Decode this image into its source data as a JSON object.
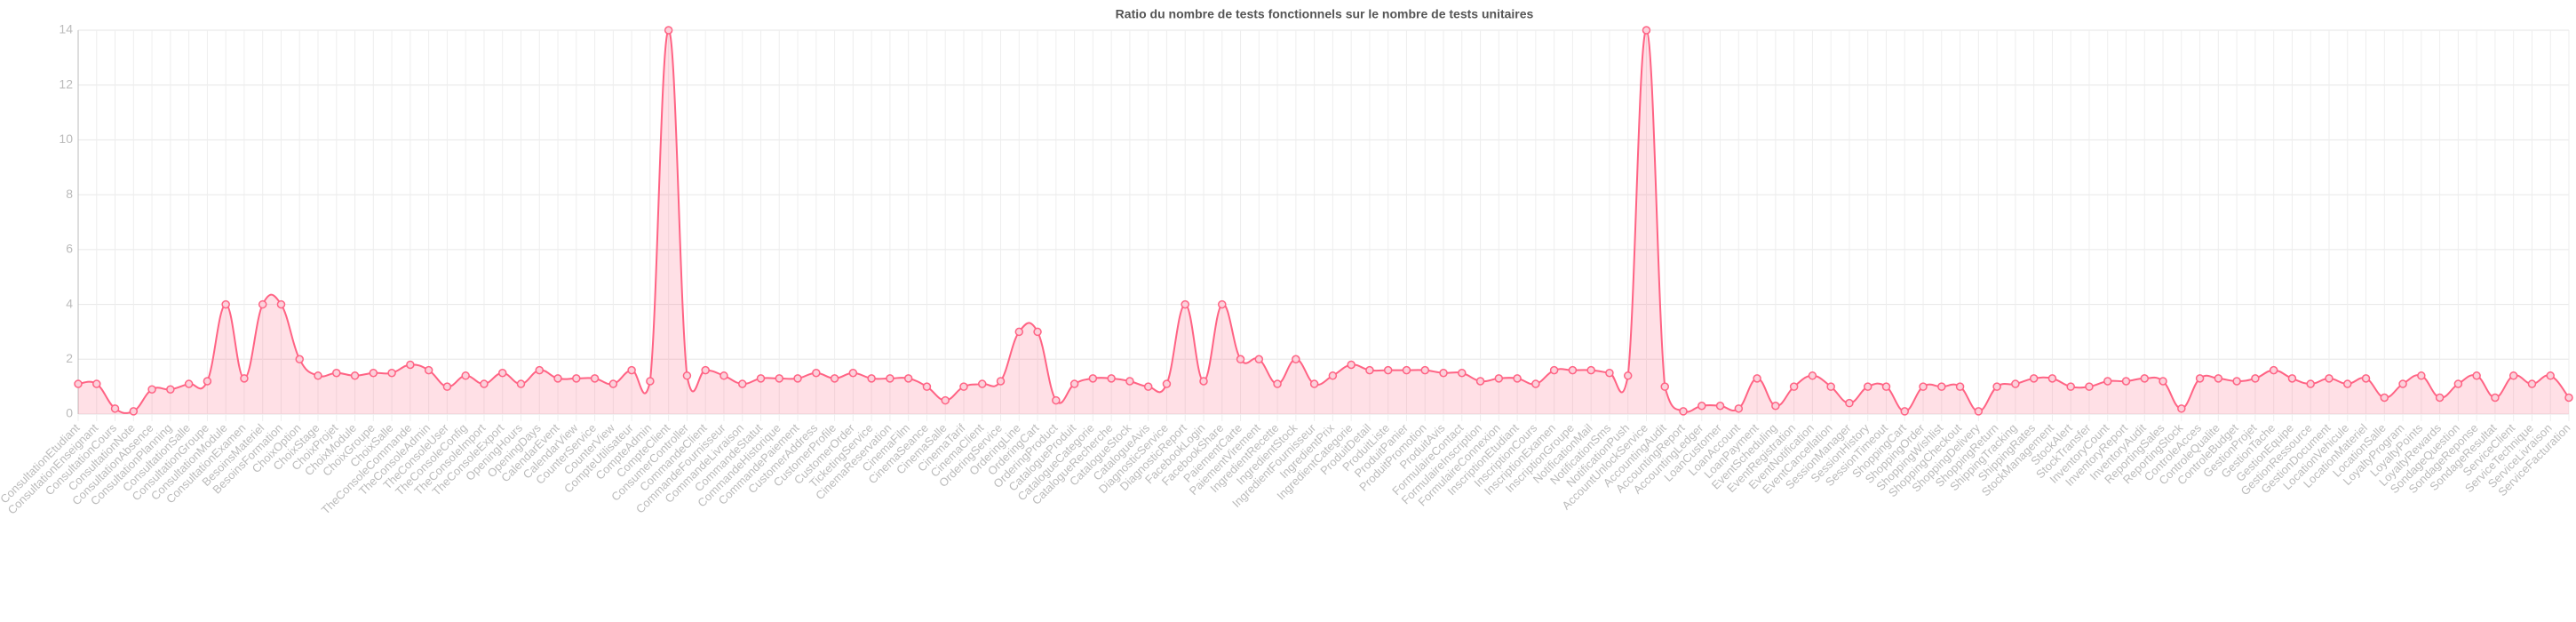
{
  "chart_data": {
    "type": "line",
    "title": "Ratio du nombre de tests fonctionnels sur le nombre de tests unitaires",
    "categories": [
      "ConsultationEtudiant",
      "ConsultationEnseignant",
      "ConsultationCours",
      "ConsultationNote",
      "ConsultationAbsence",
      "ConsultationPlanning",
      "ConsultationSalle",
      "ConsultationGroupe",
      "ConsultationModule",
      "ConsultationExamen",
      "BesoinsMateriel",
      "BesoinsFormation",
      "ChoixOption",
      "ChoixStage",
      "ChoixProjet",
      "ChoixModule",
      "ChoixGroupe",
      "ChoixSalle",
      "TheConsoleCommande",
      "TheConsoleAdmin",
      "TheConsoleUser",
      "TheConsoleConfig",
      "TheConsoleImport",
      "TheConsoleExport",
      "OpeningHours",
      "OpeningDays",
      "CalendarEvent",
      "CalendarView",
      "CounterService",
      "CounterView",
      "CompteUtilisateur",
      "CompteAdmin",
      "CompteClient",
      "ConsumerController",
      "CommandeClient",
      "CommandeFournisseur",
      "CommandeLivraison",
      "CommandeStatut",
      "CommandeHistorique",
      "CommandePaiement",
      "CustomerAddress",
      "CustomerProfile",
      "CustomerOrder",
      "TicketingService",
      "CinemaReservation",
      "CinemaFilm",
      "CinemaSeance",
      "CinemaSalle",
      "CinemaTarif",
      "CinemaClient",
      "OrderingService",
      "OrderingLine",
      "OrderingCart",
      "OrderingProduct",
      "CatalogueProduit",
      "CatalogueCategorie",
      "CatalogueRecherche",
      "CatalogueStock",
      "CatalogueAvis",
      "DiagnosticService",
      "DiagnosticReport",
      "FacebookLogin",
      "FacebookShare",
      "PaiementCarte",
      "PaiementVirement",
      "IngredientRecette",
      "IngredientStock",
      "IngredientFournisseur",
      "IngredientPrix",
      "IngredientCategorie",
      "ProduitDetail",
      "ProduitListe",
      "ProduitPanier",
      "ProduitPromotion",
      "ProduitAvis",
      "FormulaireContact",
      "FormulaireInscription",
      "FormulaireConnexion",
      "InscriptionEtudiant",
      "InscriptionCours",
      "InscriptionExamen",
      "InscriptionGroupe",
      "NotificationMail",
      "NotificationSms",
      "NotificationPush",
      "AccountUnlockService",
      "AccountingAudit",
      "AccountingReport",
      "AccountingLedger",
      "LoanCustomer",
      "LoanAccount",
      "LoanPayment",
      "EventScheduling",
      "EventRegistration",
      "EventNotification",
      "EventCancellation",
      "SessionManager",
      "SessionHistory",
      "SessionTimeout",
      "ShoppingCart",
      "ShoppingOrder",
      "ShoppingWishlist",
      "ShoppingCheckout",
      "ShoppingDelivery",
      "ShoppingReturn",
      "ShippingTracking",
      "ShippingRates",
      "StockManagement",
      "StockAlert",
      "StockTransfer",
      "InventoryCount",
      "InventoryReport",
      "InventoryAudit",
      "ReportingSales",
      "ReportingStock",
      "ControleAcces",
      "ControleQualite",
      "ControleBudget",
      "GestionProjet",
      "GestionTache",
      "GestionEquipe",
      "GestionRessource",
      "GestionDocument",
      "LocationVehicule",
      "LocationMateriel",
      "LocationSalle",
      "LoyaltyProgram",
      "LoyaltyPoints",
      "LoyaltyRewards",
      "SondageQuestion",
      "SondageReponse",
      "SondageResultat",
      "ServiceClient",
      "ServiceTechnique",
      "ServiceLivraison",
      "ServiceFacturation"
    ],
    "values": [
      1.1,
      1.1,
      0.2,
      0.1,
      0.9,
      0.9,
      1.1,
      1.2,
      4,
      1.3,
      4,
      4,
      2,
      1.4,
      1.5,
      1.4,
      1.5,
      1.5,
      1.8,
      1.6,
      1.0,
      1.4,
      1.1,
      1.5,
      1.1,
      1.6,
      1.3,
      1.3,
      1.3,
      1.1,
      1.6,
      1.2,
      14,
      1.4,
      1.6,
      1.4,
      1.1,
      1.3,
      1.3,
      1.3,
      1.5,
      1.3,
      1.5,
      1.3,
      1.3,
      1.3,
      1.0,
      0.5,
      1.0,
      1.1,
      1.2,
      3,
      3,
      0.5,
      1.1,
      1.3,
      1.3,
      1.2,
      1.0,
      1.1,
      4,
      1.2,
      4,
      2,
      2,
      1.1,
      2,
      1.1,
      1.4,
      1.8,
      1.6,
      1.6,
      1.6,
      1.6,
      1.5,
      1.5,
      1.2,
      1.3,
      1.3,
      1.1,
      1.6,
      1.6,
      1.6,
      1.5,
      1.4,
      14,
      1.0,
      0.1,
      0.3,
      0.3,
      0.2,
      1.3,
      0.3,
      1.0,
      1.4,
      1.0,
      0.4,
      1.0,
      1.0,
      0.1,
      1.0,
      1.0,
      1.0,
      0.1,
      1.0,
      1.1,
      1.3,
      1.3,
      1.0,
      1.0,
      1.2,
      1.2,
      1.3,
      1.2,
      0.2,
      1.3,
      1.3,
      1.2,
      1.3,
      1.6,
      1.3,
      1.1,
      1.3,
      1.1,
      1.3,
      0.6,
      1.1,
      1.4,
      0.6,
      1.1,
      1.4,
      0.6,
      1.4,
      1.1,
      1.4,
      0.6
    ],
    "color": "#ff6384",
    "ylim": [
      0,
      14
    ],
    "yticks": [
      0,
      2,
      4,
      6,
      8,
      10,
      12,
      14
    ],
    "grid": true
  }
}
